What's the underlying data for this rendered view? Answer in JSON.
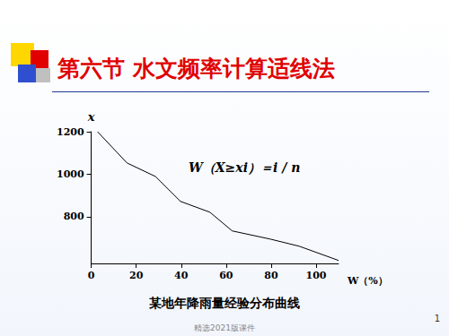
{
  "header": {
    "title": "第六节  水文频率计算适线法"
  },
  "chart_data": {
    "type": "line",
    "x_label": "W（%）",
    "y_label": "x",
    "annotation": "W（X≥xi）＝i / n",
    "x": [
      2.8,
      15.9,
      28.6,
      39.7,
      52.8,
      62.7,
      79.4,
      92.5,
      110
    ],
    "values": [
      1200,
      1053,
      989,
      872,
      821,
      733,
      695,
      661,
      594
    ],
    "color": "#000000",
    "xlim": [
      0,
      110
    ],
    "xticks": [
      0,
      20,
      40,
      60,
      80,
      100
    ],
    "ylim": [
      580,
      1200
    ],
    "yticks": [
      800,
      1000,
      1200
    ],
    "grid": false
  },
  "caption": "某地年降雨量经验分布曲线",
  "footer": "精选2021版课件",
  "page_number": "1"
}
